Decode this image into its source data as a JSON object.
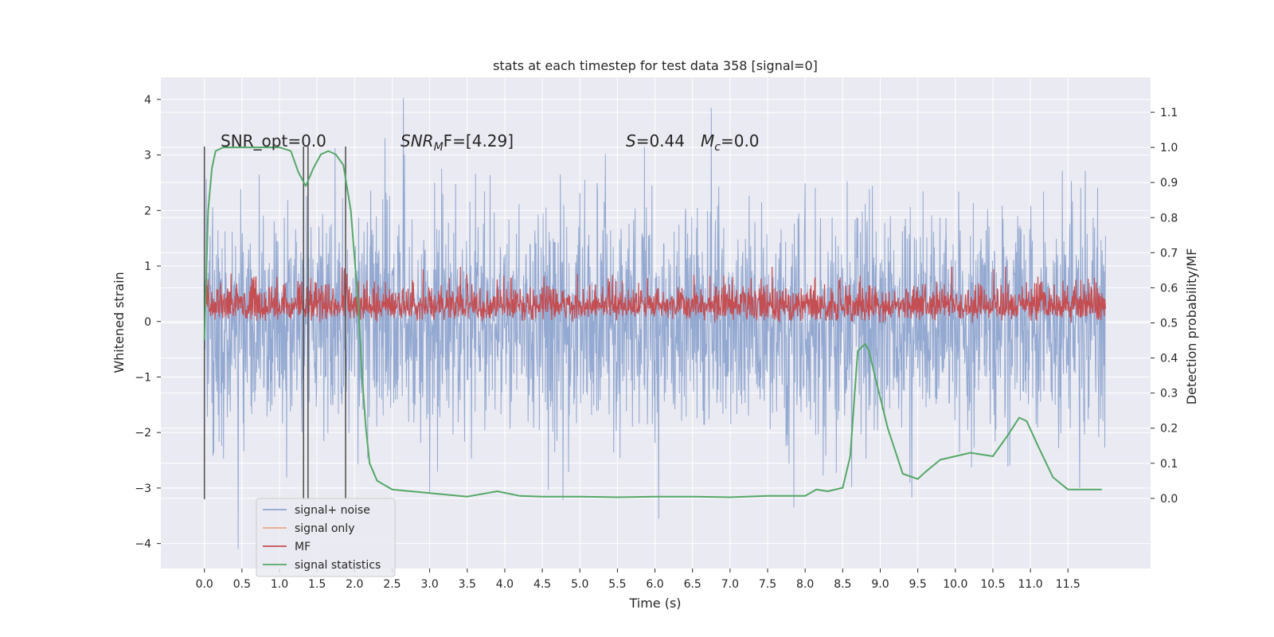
{
  "chart_data": {
    "type": "line",
    "title": "stats at each timestep for test data 358 [signal=0]",
    "xlabel": "Time (s)",
    "ylabel_left": "Whitened strain",
    "ylabel_right": "Detection probability/MF",
    "xlim": [
      -0.58,
      12.6
    ],
    "ylim_left": [
      -4.45,
      4.4
    ],
    "ylim_right": [
      -0.2,
      1.2
    ],
    "grid": true,
    "x_ticks": [
      "0.0",
      "0.5",
      "1.0",
      "1.5",
      "2.0",
      "2.5",
      "3.0",
      "3.5",
      "4.0",
      "4.5",
      "5.0",
      "5.5",
      "6.0",
      "6.5",
      "7.0",
      "7.5",
      "8.0",
      "8.5",
      "9.0",
      "9.5",
      "10.0",
      "10.5",
      "11.0",
      "11.5"
    ],
    "y_ticks_left": [
      "−4",
      "−3",
      "−2",
      "−1",
      "0",
      "1",
      "2",
      "3",
      "4"
    ],
    "y_ticks_right": [
      "0.0",
      "0.1",
      "0.2",
      "0.3",
      "0.4",
      "0.5",
      "0.6",
      "0.7",
      "0.8",
      "0.9",
      "1.0",
      "1.1"
    ],
    "annotations": {
      "snr_opt": "SNR_opt=0.0",
      "snr_mf_italic": "SNR",
      "snr_mf_sub": "M",
      "snr_mf_rest": "F=[4.29]",
      "s_italic": "S",
      "s_rest": "=0.44",
      "mc_italic": "M",
      "mc_sub": "c",
      "mc_rest": "=0.0"
    },
    "vertical_lines_x": [
      0.0,
      1.32,
      1.38,
      1.88
    ],
    "series": [
      {
        "name": "signal+ noise",
        "color": "#8fa5cf",
        "axis": "left",
        "kind": "dense-noise",
        "x_range": [
          0.0,
          12.0
        ],
        "typical_envelope": [
          -1.9,
          1.9
        ],
        "notable_peaks": [
          [
            2.65,
            4.02
          ],
          [
            6.75,
            3.85
          ],
          [
            0.45,
            -4.1
          ],
          [
            6.05,
            -3.55
          ],
          [
            7.85,
            -3.35
          ]
        ]
      },
      {
        "name": "signal only",
        "color": "#e8a88a",
        "axis": "left",
        "points": []
      },
      {
        "name": "MF",
        "color": "#c44e52",
        "axis": "right",
        "kind": "dense-noise",
        "x_range": [
          0.0,
          12.0
        ],
        "typical_envelope": [
          0.5,
          0.62
        ],
        "max": 0.66
      },
      {
        "name": "signal statistics",
        "color": "#55a868",
        "axis": "right",
        "x": [
          0.0,
          0.05,
          0.1,
          0.15,
          0.25,
          0.5,
          0.8,
          1.0,
          1.15,
          1.25,
          1.35,
          1.45,
          1.55,
          1.65,
          1.75,
          1.85,
          1.95,
          2.05,
          2.1,
          2.15,
          2.2,
          2.3,
          2.5,
          3.0,
          3.5,
          3.9,
          4.2,
          4.5,
          5.0,
          5.5,
          6.0,
          6.5,
          7.0,
          7.5,
          8.0,
          8.15,
          8.3,
          8.5,
          8.6,
          8.7,
          8.8,
          8.85,
          8.95,
          9.1,
          9.3,
          9.5,
          9.6,
          9.8,
          10.0,
          10.2,
          10.5,
          10.7,
          10.85,
          10.95,
          11.1,
          11.3,
          11.5,
          11.8,
          11.95
        ],
        "y": [
          0.45,
          0.82,
          0.94,
          0.99,
          1.0,
          1.0,
          1.0,
          1.0,
          0.99,
          0.93,
          0.89,
          0.94,
          0.98,
          0.99,
          0.98,
          0.95,
          0.82,
          0.55,
          0.35,
          0.2,
          0.1,
          0.05,
          0.025,
          0.015,
          0.005,
          0.02,
          0.007,
          0.005,
          0.005,
          0.003,
          0.005,
          0.005,
          0.003,
          0.007,
          0.007,
          0.025,
          0.02,
          0.03,
          0.12,
          0.42,
          0.44,
          0.42,
          0.33,
          0.2,
          0.07,
          0.055,
          0.075,
          0.11,
          0.12,
          0.13,
          0.12,
          0.18,
          0.23,
          0.22,
          0.15,
          0.06,
          0.025,
          0.025,
          0.025
        ]
      }
    ],
    "legend": {
      "position": "lower-left",
      "entries": [
        {
          "label": "signal+ noise",
          "color": "#8fa5cf"
        },
        {
          "label": "signal only",
          "color": "#e8a88a"
        },
        {
          "label": "MF",
          "color": "#c44e52"
        },
        {
          "label": "signal statistics",
          "color": "#55a868"
        }
      ]
    }
  }
}
